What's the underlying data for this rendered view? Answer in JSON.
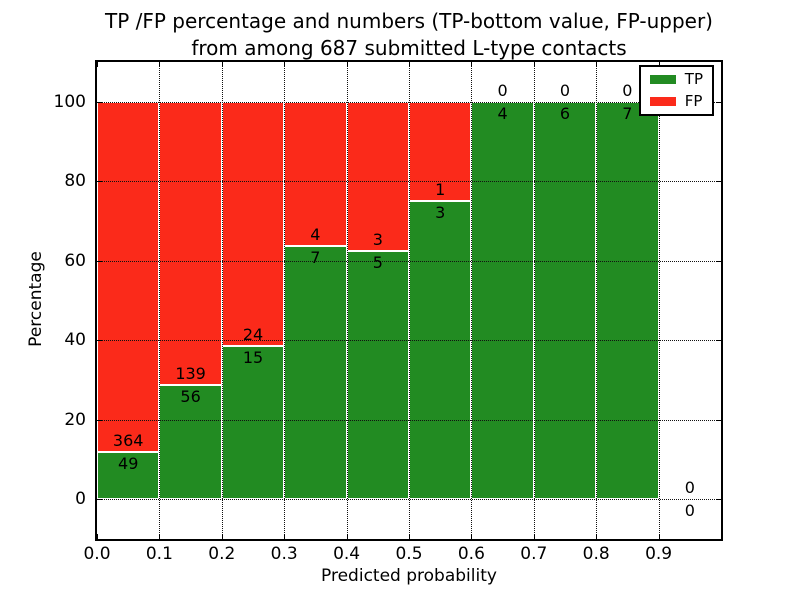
{
  "figure": {
    "title_line1": "TP /FP percentage and numbers (TP-bottom value, FP-upper)",
    "title_line2": "from among 687 submitted L-type contacts"
  },
  "chart_data": {
    "type": "bar",
    "stacked": true,
    "title": "TP /FP percentage and numbers (TP-bottom value, FP-upper) from among 687 submitted L-type contacts",
    "xlabel": "Predicted probability",
    "ylabel": "Percentage",
    "xlim": [
      0,
      1.0
    ],
    "ylim": [
      -10,
      110
    ],
    "xticks": [
      0.0,
      0.1,
      0.2,
      0.3,
      0.4,
      0.5,
      0.6,
      0.7,
      0.8,
      0.9
    ],
    "xtick_labels": [
      "0.0",
      "0.1",
      "0.2",
      "0.3",
      "0.4",
      "0.5",
      "0.6",
      "0.7",
      "0.8",
      "0.9"
    ],
    "yticks": [
      0,
      20,
      40,
      60,
      80,
      100
    ],
    "ytick_labels": [
      "0",
      "20",
      "40",
      "60",
      "80",
      "100"
    ],
    "grid": "dotted",
    "bar_width": 0.1,
    "total_contacts": 687,
    "legend": {
      "position": "upper right",
      "entries": [
        {
          "label": "TP",
          "color": "#228b22"
        },
        {
          "label": "FP",
          "color": "#fb2a1a"
        }
      ]
    },
    "colors": {
      "tp": "#228b22",
      "fp": "#fb2a1a"
    },
    "bins": [
      {
        "x_start": 0.0,
        "x_end": 0.1,
        "tp": 49,
        "fp": 364
      },
      {
        "x_start": 0.1,
        "x_end": 0.2,
        "tp": 56,
        "fp": 139
      },
      {
        "x_start": 0.2,
        "x_end": 0.3,
        "tp": 15,
        "fp": 24
      },
      {
        "x_start": 0.3,
        "x_end": 0.4,
        "tp": 7,
        "fp": 4
      },
      {
        "x_start": 0.4,
        "x_end": 0.5,
        "tp": 5,
        "fp": 3
      },
      {
        "x_start": 0.5,
        "x_end": 0.6,
        "tp": 3,
        "fp": 1
      },
      {
        "x_start": 0.6,
        "x_end": 0.7,
        "tp": 4,
        "fp": 0
      },
      {
        "x_start": 0.7,
        "x_end": 0.8,
        "tp": 6,
        "fp": 0
      },
      {
        "x_start": 0.8,
        "x_end": 0.9,
        "tp": 7,
        "fp": 0
      },
      {
        "x_start": 0.9,
        "x_end": 1.0,
        "tp": 0,
        "fp": 0
      }
    ]
  }
}
